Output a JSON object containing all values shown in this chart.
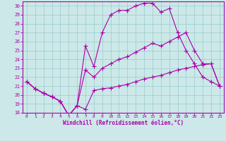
{
  "xlabel": "Windchill (Refroidissement éolien,°C)",
  "bg_color": "#cce8e8",
  "line_color": "#aa00aa",
  "grid_color": "#99cccc",
  "xlim": [
    -0.5,
    23.5
  ],
  "ylim": [
    18,
    30.5
  ],
  "yticks": [
    18,
    19,
    20,
    21,
    22,
    23,
    24,
    25,
    26,
    27,
    28,
    29,
    30
  ],
  "xticks": [
    0,
    1,
    2,
    3,
    4,
    5,
    6,
    7,
    8,
    9,
    10,
    11,
    12,
    13,
    14,
    15,
    16,
    17,
    18,
    19,
    20,
    21,
    22,
    23
  ],
  "line1_x": [
    0,
    1,
    2,
    3,
    4,
    5,
    6,
    7,
    8,
    9,
    10,
    11,
    12,
    13,
    14,
    15,
    16,
    17,
    18,
    19,
    20,
    21,
    22,
    23
  ],
  "line1_y": [
    21.5,
    20.7,
    20.2,
    19.8,
    19.3,
    17.7,
    18.8,
    18.4,
    20.5,
    20.7,
    20.8,
    21.0,
    21.2,
    21.5,
    21.8,
    22.0,
    22.2,
    22.5,
    22.8,
    23.0,
    23.2,
    23.4,
    23.5,
    21.0
  ],
  "line2_x": [
    0,
    1,
    2,
    3,
    4,
    5,
    6,
    7,
    8,
    9,
    10,
    11,
    12,
    13,
    14,
    15,
    16,
    17,
    18,
    19,
    20,
    21,
    22,
    23
  ],
  "line2_y": [
    21.5,
    20.7,
    20.2,
    19.8,
    19.3,
    17.7,
    18.8,
    25.5,
    23.2,
    27.0,
    29.0,
    29.5,
    29.5,
    30.0,
    30.3,
    30.3,
    29.3,
    29.7,
    27.0,
    25.0,
    23.5,
    22.0,
    21.5,
    21.0
  ],
  "line3_x": [
    0,
    1,
    2,
    3,
    4,
    5,
    6,
    7,
    8,
    9,
    10,
    11,
    12,
    13,
    14,
    15,
    16,
    17,
    18,
    19,
    20,
    21,
    22,
    23
  ],
  "line3_y": [
    21.5,
    20.7,
    20.2,
    19.8,
    19.3,
    17.7,
    18.8,
    22.8,
    22.0,
    23.0,
    23.5,
    24.0,
    24.3,
    24.8,
    25.3,
    25.8,
    25.5,
    26.0,
    26.5,
    27.0,
    25.0,
    23.5,
    23.5,
    21.0
  ]
}
